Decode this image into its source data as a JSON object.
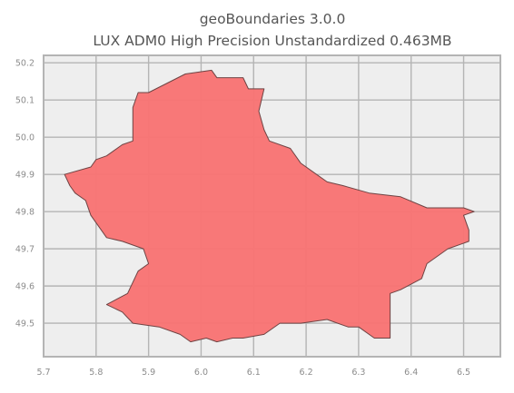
{
  "title": {
    "line1": "geoBoundaries 3.0.0",
    "line2": "LUX ADM0 High Precision Unstandardized 0.463MB"
  },
  "colors": {
    "background": "#ffffff",
    "plot_background": "#eeeeee",
    "grid": "#b4b4b4",
    "frame": "#b4b4b4",
    "fill": "#f87474",
    "outline": "#6e4444",
    "title_text": "#555555",
    "tick_text": "#8c8c8c"
  },
  "chart_data": {
    "type": "map",
    "grid": true,
    "legend": "none",
    "xlim": [
      5.7,
      6.57
    ],
    "ylim": [
      49.41,
      50.22
    ],
    "x_ticks": [
      5.7,
      5.8,
      5.9,
      6.0,
      6.1,
      6.2,
      6.3,
      6.4,
      6.5
    ],
    "x_tick_labels": [
      "5.7",
      "5.8",
      "5.9",
      "6.0",
      "6.1",
      "6.2",
      "6.3",
      "6.4",
      "6.5"
    ],
    "y_ticks": [
      49.5,
      49.6,
      49.7,
      49.8,
      49.9,
      50.0,
      50.1,
      50.2
    ],
    "y_tick_labels": [
      "49.5",
      "49.6",
      "49.7",
      "49.8",
      "49.9",
      "50.0",
      "50.1",
      "50.2"
    ],
    "features": [
      {
        "name": "LUX",
        "boundary": [
          [
            5.9,
            50.12
          ],
          [
            5.97,
            50.17
          ],
          [
            6.02,
            50.18
          ],
          [
            6.03,
            50.16
          ],
          [
            6.08,
            50.16
          ],
          [
            6.09,
            50.13
          ],
          [
            6.12,
            50.13
          ],
          [
            6.11,
            50.07
          ],
          [
            6.12,
            50.02
          ],
          [
            6.13,
            49.99
          ],
          [
            6.17,
            49.97
          ],
          [
            6.19,
            49.93
          ],
          [
            6.22,
            49.9
          ],
          [
            6.24,
            49.88
          ],
          [
            6.27,
            49.87
          ],
          [
            6.32,
            49.85
          ],
          [
            6.38,
            49.84
          ],
          [
            6.43,
            49.81
          ],
          [
            6.48,
            49.81
          ],
          [
            6.5,
            49.81
          ],
          [
            6.52,
            49.8
          ],
          [
            6.5,
            49.79
          ],
          [
            6.51,
            49.75
          ],
          [
            6.51,
            49.72
          ],
          [
            6.47,
            49.7
          ],
          [
            6.43,
            49.66
          ],
          [
            6.42,
            49.62
          ],
          [
            6.38,
            49.59
          ],
          [
            6.36,
            49.58
          ],
          [
            6.36,
            49.53
          ],
          [
            6.36,
            49.46
          ],
          [
            6.33,
            49.46
          ],
          [
            6.3,
            49.49
          ],
          [
            6.28,
            49.49
          ],
          [
            6.24,
            49.51
          ],
          [
            6.19,
            49.5
          ],
          [
            6.15,
            49.5
          ],
          [
            6.12,
            49.47
          ],
          [
            6.08,
            49.46
          ],
          [
            6.06,
            49.46
          ],
          [
            6.03,
            49.45
          ],
          [
            6.01,
            49.46
          ],
          [
            5.98,
            49.45
          ],
          [
            5.96,
            49.47
          ],
          [
            5.92,
            49.49
          ],
          [
            5.87,
            49.5
          ],
          [
            5.85,
            49.53
          ],
          [
            5.82,
            49.55
          ],
          [
            5.86,
            49.58
          ],
          [
            5.88,
            49.64
          ],
          [
            5.9,
            49.66
          ],
          [
            5.89,
            49.7
          ],
          [
            5.85,
            49.72
          ],
          [
            5.82,
            49.73
          ],
          [
            5.79,
            49.79
          ],
          [
            5.78,
            49.83
          ],
          [
            5.76,
            49.85
          ],
          [
            5.75,
            49.87
          ],
          [
            5.74,
            49.9
          ],
          [
            5.79,
            49.92
          ],
          [
            5.8,
            49.94
          ],
          [
            5.82,
            49.95
          ],
          [
            5.85,
            49.98
          ],
          [
            5.87,
            49.99
          ],
          [
            5.87,
            50.05
          ],
          [
            5.87,
            50.08
          ],
          [
            5.88,
            50.12
          ],
          [
            5.9,
            50.12
          ]
        ]
      }
    ]
  }
}
